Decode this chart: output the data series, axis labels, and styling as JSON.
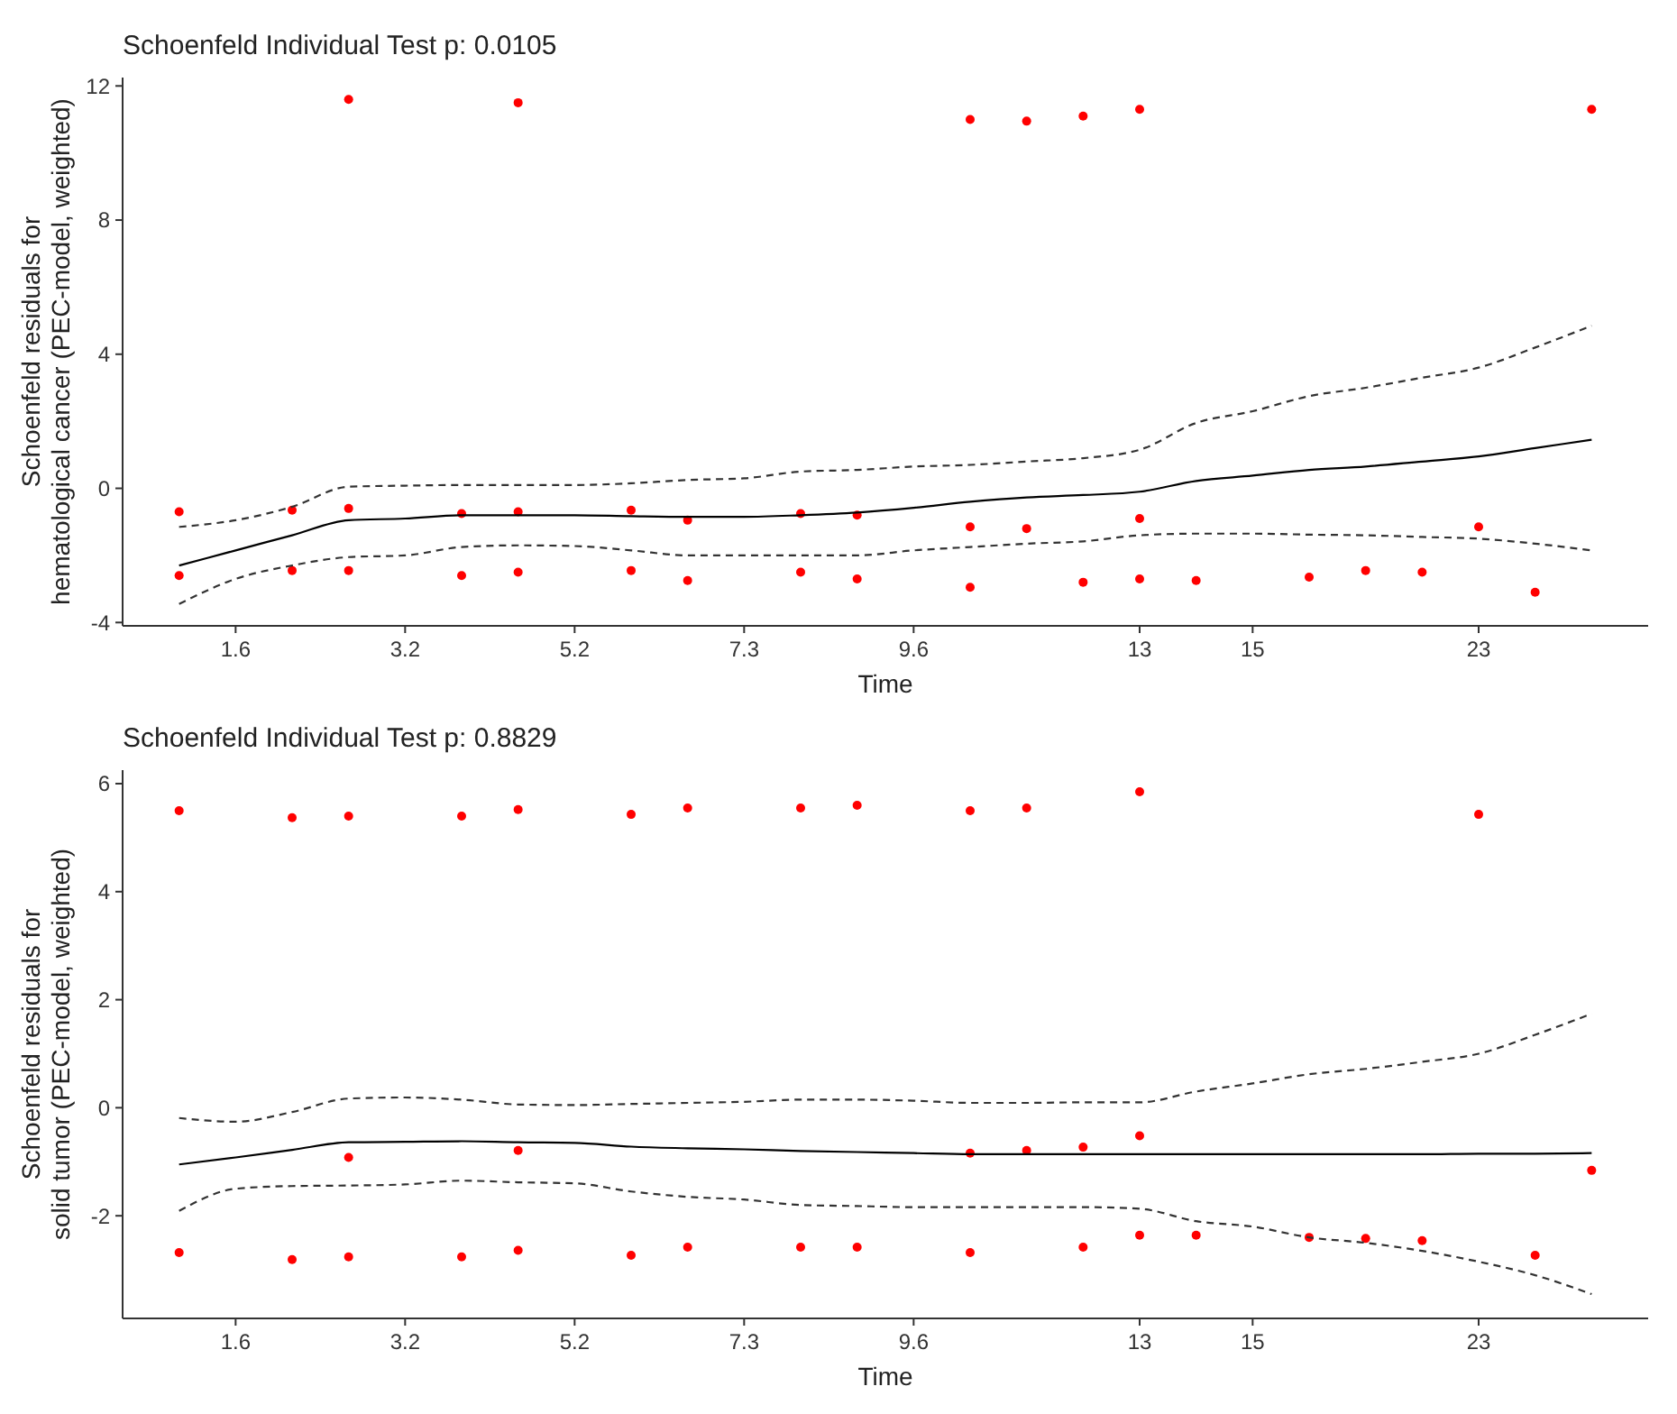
{
  "chart_data": [
    {
      "type": "scatter",
      "title": "Schoenfeld Individual Test p: 0.0105",
      "xlabel": "Time",
      "ylabel": "Schoenfeld residuals for\nhematological cancer (PEC-model, weighted)",
      "marker": "circle",
      "categories": [
        null,
        "1.6",
        null,
        null,
        "3.2",
        null,
        null,
        "5.2",
        null,
        null,
        "7.3",
        null,
        null,
        "9.6",
        null,
        null,
        null,
        "13",
        null,
        "15",
        null,
        null,
        null,
        "23",
        null,
        null
      ],
      "ylim": [
        -4.1,
        12.25
      ],
      "yticks": [
        -4,
        0,
        4,
        8,
        12
      ],
      "series": [
        {
          "color": "#ff0000",
          "values": [
            null,
            null,
            null,
            11.6,
            null,
            null,
            11.5,
            null,
            null,
            null,
            null,
            null,
            null,
            null,
            11.0,
            10.95,
            11.1,
            11.3,
            null,
            null,
            null,
            null,
            null,
            null,
            null,
            11.3
          ]
        },
        {
          "color": "#ff0000",
          "values": [
            -0.7,
            null,
            -0.65,
            -0.6,
            null,
            -0.75,
            -0.7,
            null,
            -0.65,
            -0.95,
            null,
            -0.75,
            -0.8,
            null,
            -1.15,
            -1.2,
            null,
            -0.9,
            null,
            null,
            null,
            null,
            null,
            -1.15,
            null,
            null
          ]
        },
        {
          "color": "#ff0000",
          "values": [
            -2.6,
            null,
            -2.45,
            -2.45,
            null,
            -2.6,
            -2.5,
            null,
            -2.45,
            -2.75,
            null,
            -2.5,
            -2.7,
            null,
            -2.95,
            null,
            -2.8,
            -2.7,
            -2.75,
            null,
            -2.65,
            -2.45,
            -2.5,
            null,
            -3.1,
            null
          ]
        },
        {
          "type": "line",
          "marker": "none",
          "color": "#000000",
          "line_style": "solid",
          "values": [
            -2.3,
            -1.85,
            -1.4,
            -0.95,
            -0.9,
            -0.8,
            -0.8,
            -0.8,
            -0.83,
            -0.85,
            -0.85,
            -0.8,
            -0.72,
            -0.58,
            -0.4,
            -0.27,
            -0.2,
            -0.1,
            0.22,
            0.38,
            0.55,
            0.65,
            0.8,
            0.95,
            1.2,
            1.45
          ]
        },
        {
          "type": "line",
          "marker": "none",
          "color": "#333333",
          "line_style": "dashed",
          "values": [
            -1.15,
            -0.95,
            -0.55,
            0.05,
            0.08,
            0.1,
            0.1,
            0.1,
            0.15,
            0.25,
            0.3,
            0.5,
            0.55,
            0.65,
            0.7,
            0.8,
            0.9,
            1.15,
            1.95,
            2.3,
            2.75,
            3.0,
            3.3,
            3.6,
            4.2,
            4.85
          ]
        },
        {
          "type": "line",
          "marker": "none",
          "color": "#333333",
          "line_style": "dashed",
          "values": [
            -3.45,
            -2.7,
            -2.3,
            -2.05,
            -2.0,
            -1.75,
            -1.7,
            -1.72,
            -1.85,
            -2.0,
            -2.0,
            -2.0,
            -2.0,
            -1.85,
            -1.75,
            -1.65,
            -1.58,
            -1.4,
            -1.35,
            -1.35,
            -1.38,
            -1.4,
            -1.45,
            -1.5,
            -1.65,
            -1.85
          ]
        }
      ]
    },
    {
      "type": "scatter",
      "title": "Schoenfeld Individual Test p: 0.8829",
      "xlabel": "Time",
      "ylabel": "Schoenfeld residuals for\nsolid tumor (PEC-model, weighted)",
      "marker": "circle",
      "categories": [
        null,
        "1.6",
        null,
        null,
        "3.2",
        null,
        null,
        "5.2",
        null,
        null,
        "7.3",
        null,
        null,
        "9.6",
        null,
        null,
        null,
        "13",
        null,
        "15",
        null,
        null,
        null,
        "23",
        null,
        null
      ],
      "ylim": [
        -3.9,
        6.25
      ],
      "yticks": [
        -2,
        0,
        2,
        4,
        6
      ],
      "series": [
        {
          "color": "#ff0000",
          "values": [
            5.5,
            null,
            5.37,
            5.4,
            null,
            5.4,
            5.52,
            null,
            5.43,
            5.55,
            null,
            5.55,
            5.6,
            null,
            5.5,
            5.55,
            null,
            5.85,
            null,
            null,
            null,
            null,
            null,
            5.43,
            null,
            null
          ]
        },
        {
          "color": "#ff0000",
          "values": [
            null,
            null,
            null,
            -0.92,
            null,
            null,
            -0.79,
            null,
            null,
            null,
            null,
            null,
            null,
            null,
            -0.84,
            -0.79,
            -0.73,
            -0.52,
            null,
            null,
            null,
            null,
            null,
            null,
            null,
            -1.16
          ]
        },
        {
          "color": "#ff0000",
          "values": [
            -2.68,
            null,
            -2.81,
            -2.76,
            null,
            -2.76,
            -2.64,
            null,
            -2.73,
            -2.58,
            null,
            -2.58,
            -2.58,
            null,
            -2.68,
            null,
            -2.58,
            -2.36,
            -2.36,
            null,
            -2.4,
            -2.42,
            -2.46,
            null,
            -2.73,
            null
          ]
        },
        {
          "type": "line",
          "marker": "none",
          "color": "#000000",
          "line_style": "solid",
          "values": [
            -1.05,
            -0.92,
            -0.78,
            -0.64,
            -0.63,
            -0.62,
            -0.64,
            -0.65,
            -0.72,
            -0.75,
            -0.77,
            -0.8,
            -0.82,
            -0.84,
            -0.86,
            -0.86,
            -0.86,
            -0.86,
            -0.86,
            -0.86,
            -0.86,
            -0.86,
            -0.86,
            -0.85,
            -0.85,
            -0.84
          ]
        },
        {
          "type": "line",
          "marker": "none",
          "color": "#333333",
          "line_style": "dashed",
          "values": [
            -0.19,
            -0.26,
            -0.08,
            0.17,
            0.19,
            0.15,
            0.06,
            0.05,
            0.07,
            0.09,
            0.11,
            0.15,
            0.15,
            0.13,
            0.09,
            0.09,
            0.1,
            0.1,
            0.3,
            0.45,
            0.62,
            0.72,
            0.85,
            1.0,
            1.35,
            1.74
          ]
        },
        {
          "type": "line",
          "marker": "none",
          "color": "#333333",
          "line_style": "dashed",
          "values": [
            -1.91,
            -1.5,
            -1.45,
            -1.44,
            -1.42,
            -1.35,
            -1.38,
            -1.4,
            -1.55,
            -1.65,
            -1.7,
            -1.8,
            -1.82,
            -1.84,
            -1.84,
            -1.84,
            -1.84,
            -1.87,
            -2.1,
            -2.2,
            -2.4,
            -2.5,
            -2.65,
            -2.85,
            -3.1,
            -3.45
          ]
        }
      ]
    }
  ]
}
